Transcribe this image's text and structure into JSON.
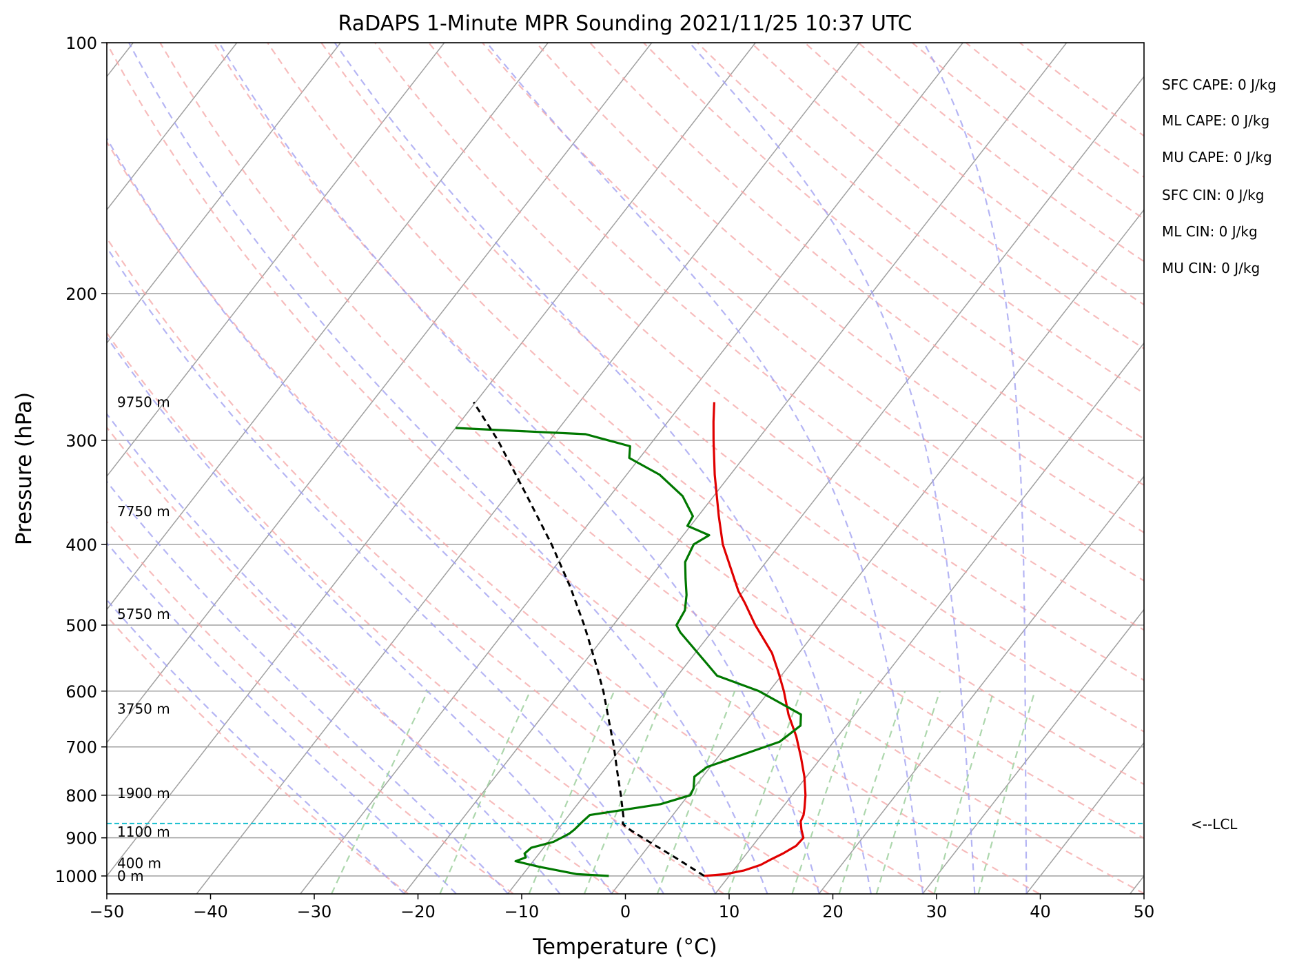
{
  "chart_data": {
    "type": "line",
    "title": "RaDAPS 1-Minute MPR Sounding 2021/11/25 10:37 UTC",
    "xlabel": "Temperature (°C)",
    "ylabel": "Pressure (hPa)",
    "xlim": [
      -50,
      50
    ],
    "ylim": [
      1050,
      100
    ],
    "y_scale": "log",
    "skew": "skew-T",
    "x_ticks": [
      -50,
      -40,
      -30,
      -20,
      -10,
      0,
      10,
      20,
      30,
      40,
      50
    ],
    "x_tick_labels": [
      "−50",
      "−40",
      "−30",
      "−20",
      "−10",
      "0",
      "10",
      "20",
      "30",
      "40",
      "50"
    ],
    "y_ticks": [
      100,
      200,
      300,
      400,
      500,
      600,
      700,
      800,
      900,
      1000
    ],
    "y_tick_labels": [
      "100",
      "200",
      "300",
      "400",
      "500",
      "600",
      "700",
      "800",
      "900",
      "1000"
    ],
    "grid": true,
    "colors": {
      "temperature": "#e00000",
      "dewpoint": "#007800",
      "parcel": "#000000",
      "lcl": "#17becf",
      "dry_adiabats": "#f4a6a6",
      "moist_adiabats": "#9c9cf0",
      "mixing_ratio": "#9fd09f",
      "isotherms": "#a0a0a0"
    },
    "series": [
      {
        "key": "temperature",
        "points": [
          [
            1000,
            7.6
          ],
          [
            995,
            9.5
          ],
          [
            985,
            11.0
          ],
          [
            970,
            12.2
          ],
          [
            955,
            12.8
          ],
          [
            940,
            13.5
          ],
          [
            920,
            14.2
          ],
          [
            900,
            14.3
          ],
          [
            880,
            13.5
          ],
          [
            860,
            12.8
          ],
          [
            845,
            12.6
          ],
          [
            830,
            12.2
          ],
          [
            800,
            11.3
          ],
          [
            760,
            9.8
          ],
          [
            720,
            8.0
          ],
          [
            680,
            6.0
          ],
          [
            640,
            3.6
          ],
          [
            600,
            1.4
          ],
          [
            570,
            -0.5
          ],
          [
            540,
            -2.6
          ],
          [
            500,
            -6.3
          ],
          [
            470,
            -9.0
          ],
          [
            455,
            -10.5
          ],
          [
            440,
            -11.8
          ],
          [
            400,
            -15.5
          ],
          [
            370,
            -18.0
          ],
          [
            330,
            -21.5
          ],
          [
            300,
            -24.2
          ],
          [
            285,
            -25.6
          ],
          [
            270,
            -27.0
          ]
        ]
      },
      {
        "key": "dewpoint",
        "points": [
          [
            1000,
            -1.6
          ],
          [
            995,
            -4.8
          ],
          [
            975,
            -9.0
          ],
          [
            960,
            -11.7
          ],
          [
            950,
            -11.0
          ],
          [
            940,
            -11.4
          ],
          [
            925,
            -11.2
          ],
          [
            910,
            -9.5
          ],
          [
            890,
            -8.6
          ],
          [
            880,
            -8.4
          ],
          [
            860,
            -8.2
          ],
          [
            845,
            -8.0
          ],
          [
            820,
            -2.0
          ],
          [
            800,
            0.2
          ],
          [
            785,
            0.0
          ],
          [
            760,
            -0.8
          ],
          [
            740,
            -0.3
          ],
          [
            720,
            1.7
          ],
          [
            690,
            4.8
          ],
          [
            660,
            5.6
          ],
          [
            640,
            4.8
          ],
          [
            600,
            -1.0
          ],
          [
            575,
            -6.2
          ],
          [
            555,
            -8.2
          ],
          [
            510,
            -13.0
          ],
          [
            500,
            -13.9
          ],
          [
            480,
            -14.2
          ],
          [
            460,
            -15.2
          ],
          [
            440,
            -16.5
          ],
          [
            420,
            -17.8
          ],
          [
            400,
            -18.3
          ],
          [
            390,
            -17.5
          ],
          [
            380,
            -20.3
          ],
          [
            370,
            -20.5
          ],
          [
            350,
            -23.0
          ],
          [
            330,
            -26.8
          ],
          [
            315,
            -31.0
          ],
          [
            305,
            -31.8
          ],
          [
            295,
            -37.0
          ],
          [
            290,
            -50.0
          ]
        ]
      },
      {
        "key": "parcel",
        "points": [
          [
            1000,
            7.6
          ],
          [
            950,
            3.4
          ],
          [
            900,
            -1.2
          ],
          [
            875,
            -3.5
          ],
          [
            865,
            -4.2
          ],
          [
            850,
            -4.6
          ],
          [
            800,
            -6.5
          ],
          [
            750,
            -8.6
          ],
          [
            700,
            -10.8
          ],
          [
            650,
            -13.3
          ],
          [
            600,
            -16.0
          ],
          [
            550,
            -19.2
          ],
          [
            500,
            -22.8
          ],
          [
            450,
            -27.0
          ],
          [
            400,
            -32.0
          ],
          [
            350,
            -38.0
          ],
          [
            300,
            -45.0
          ],
          [
            270,
            -50.2
          ]
        ]
      }
    ],
    "lcl_pressure": 865,
    "lcl_label": "<--LCL",
    "height_labels": [
      {
        "p": 270,
        "text": "9750 m"
      },
      {
        "p": 365,
        "text": "7750 m"
      },
      {
        "p": 485,
        "text": "5750 m"
      },
      {
        "p": 630,
        "text": "3750 m"
      },
      {
        "p": 796,
        "text": "1900 m"
      },
      {
        "p": 885,
        "text": "1100 m"
      },
      {
        "p": 965,
        "text": "400 m"
      },
      {
        "p": 1000,
        "text": "0 m"
      }
    ],
    "annotations": [
      "SFC CAPE: 0 J/kg",
      "ML CAPE: 0 J/kg",
      "MU CAPE: 0 J/kg",
      "SFC CIN: 0 J/kg",
      "ML CIN: 0 J/kg",
      "MU CIN: 0 J/kg"
    ]
  }
}
